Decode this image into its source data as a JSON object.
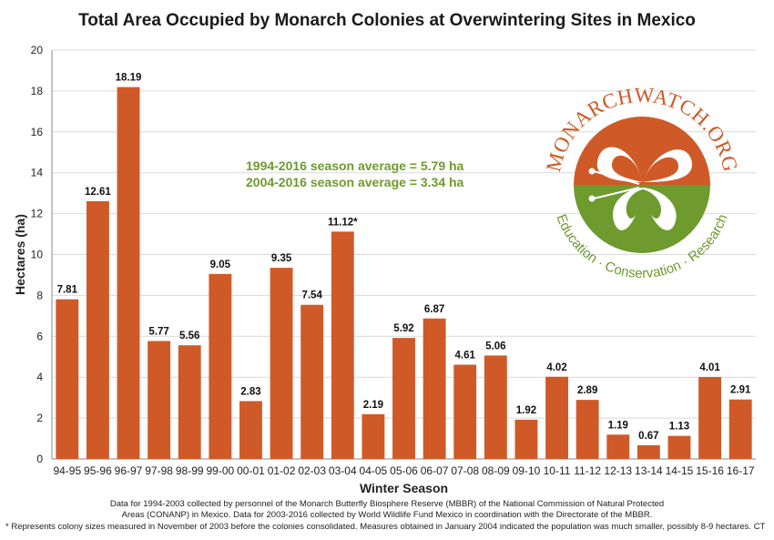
{
  "chart_data": {
    "type": "bar",
    "title": "Total Area Occupied by Monarch Colonies at Overwintering Sites in Mexico",
    "xlabel": "Winter Season",
    "ylabel": "Hectares (ha)",
    "ylim": [
      0,
      20
    ],
    "yticks": [
      0,
      2,
      4,
      6,
      8,
      10,
      12,
      14,
      16,
      18,
      20
    ],
    "grid": true,
    "categories": [
      "94-95",
      "95-96",
      "96-97",
      "97-98",
      "98-99",
      "99-00",
      "00-01",
      "01-02",
      "02-03",
      "03-04",
      "04-05",
      "05-06",
      "06-07",
      "07-08",
      "08-09",
      "09-10",
      "10-11",
      "11-12",
      "12-13",
      "13-14",
      "14-15",
      "15-16",
      "16-17"
    ],
    "values": [
      7.81,
      12.61,
      18.19,
      5.77,
      5.56,
      9.05,
      2.83,
      9.35,
      7.54,
      11.12,
      2.19,
      5.92,
      6.87,
      4.61,
      5.06,
      1.92,
      4.02,
      2.89,
      1.19,
      0.67,
      1.13,
      4.01,
      2.91
    ],
    "value_labels": [
      "7.81",
      "12.61",
      "18.19",
      "5.77",
      "5.56",
      "9.05",
      "2.83",
      "9.35",
      "7.54",
      "11.12*",
      "2.19",
      "5.92",
      "6.87",
      "4.61",
      "5.06",
      "1.92",
      "4.02",
      "2.89",
      "1.19",
      "0.67",
      "1.13",
      "4.01",
      "2.91"
    ],
    "bar_color": "#cf5a28",
    "annotations": [
      "1994-2016 season average = 5.79 ha",
      "2004-2016 season average = 3.34 ha"
    ]
  },
  "logo": {
    "top_text": "MONARCHWATCH.ORG",
    "bottom_text": "Education · Conservation · Research",
    "colors": {
      "orange": "#cf5a28",
      "green": "#6e9a2e"
    }
  },
  "footnotes": [
    "Data for 1994-2003 collected by personnel of the Monarch Butterfly Biosphere Reserve (MBBR) of the National Commission of Natural Protected",
    "Areas (CONANP) in Mexico. Data for 2003-2016 collected by World Wildlife Fund Mexico in coordination with the Directorate of the MBBR.",
    "* Represents colony sizes measured in November of 2003 before the colonies consolidated. Measures obtained in January 2004 indicated the population was much smaller, possibly 8-9 hectares. CT"
  ]
}
